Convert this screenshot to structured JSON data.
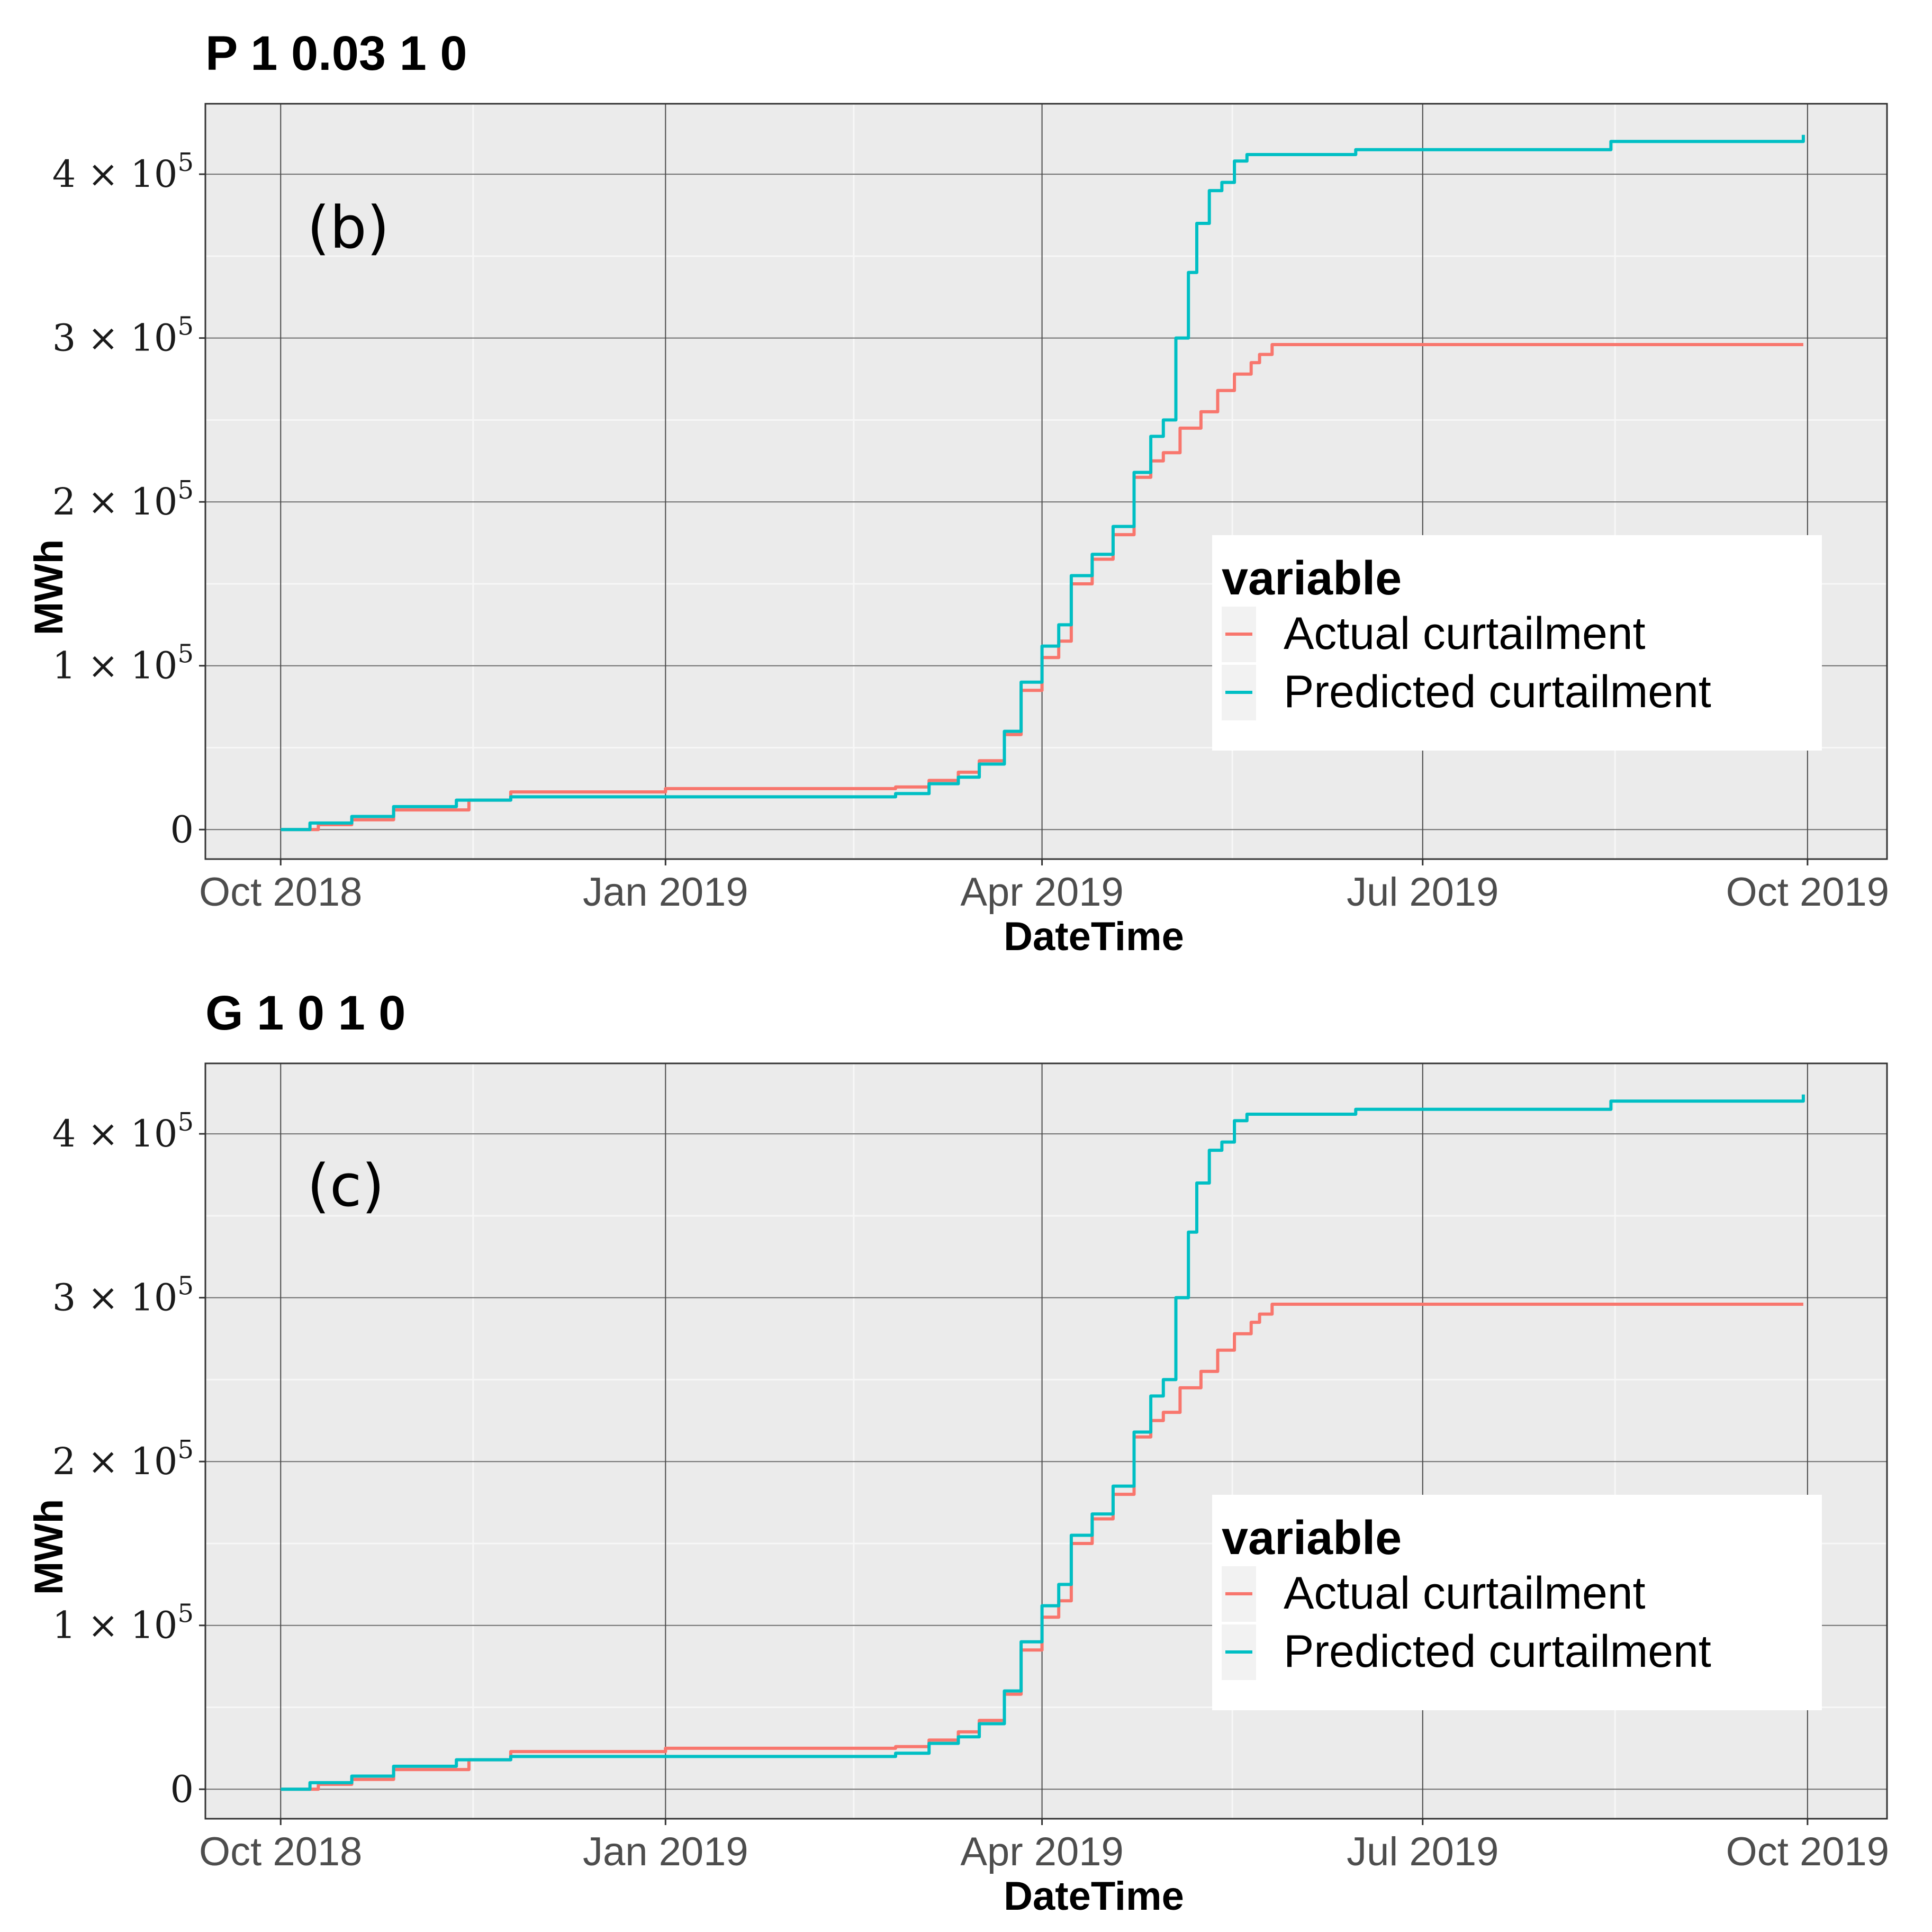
{
  "chart_data": [
    {
      "type": "line",
      "title": "P 1 0.03 1 0",
      "annotation": "(b)",
      "xlabel": "DateTime",
      "ylabel": "MWh",
      "x_ticks": [
        "Oct 2018",
        "Jan 2019",
        "Apr 2019",
        "Jul 2019",
        "Oct 2019"
      ],
      "x_tick_dates": [
        "2018-10-01",
        "2019-01-01",
        "2019-04-01",
        "2019-07-01",
        "2019-10-01"
      ],
      "xlim": [
        "2018-09-13",
        "2019-10-20"
      ],
      "y_ticks": [
        0,
        100000,
        200000,
        300000,
        400000
      ],
      "y_tick_labels": [
        {
          "mantissa": "0",
          "exp": ""
        },
        {
          "mantissa": "1 × 10",
          "exp": "5"
        },
        {
          "mantissa": "2 × 10",
          "exp": "5"
        },
        {
          "mantissa": "3 × 10",
          "exp": "5"
        },
        {
          "mantissa": "4 × 10",
          "exp": "5"
        }
      ],
      "ylim": [
        -18000,
        443000
      ],
      "grid": true,
      "legend": {
        "title": "variable",
        "position": "right"
      },
      "series": [
        {
          "name": "Actual curtailment",
          "color": "#F8766D",
          "x": [
            "2018-10-01",
            "2018-10-10",
            "2018-10-18",
            "2018-10-28",
            "2018-11-15",
            "2018-11-25",
            "2019-01-01",
            "2019-02-25",
            "2019-03-05",
            "2019-03-12",
            "2019-03-17",
            "2019-03-23",
            "2019-03-27",
            "2019-04-01",
            "2019-04-05",
            "2019-04-08",
            "2019-04-13",
            "2019-04-18",
            "2019-04-23",
            "2019-04-27",
            "2019-04-30",
            "2019-05-04",
            "2019-05-09",
            "2019-05-13",
            "2019-05-17",
            "2019-05-21",
            "2019-05-23",
            "2019-05-26",
            "2019-09-30"
          ],
          "values": [
            0,
            3000,
            6000,
            12000,
            18000,
            23000,
            25000,
            26000,
            30000,
            35000,
            42000,
            58000,
            85000,
            105000,
            115000,
            150000,
            165000,
            180000,
            215000,
            225000,
            230000,
            245000,
            255000,
            268000,
            278000,
            285000,
            290000,
            296000,
            296000
          ]
        },
        {
          "name": "Predicted curtailment",
          "color": "#00BFC4",
          "x": [
            "2018-10-01",
            "2018-10-08",
            "2018-10-18",
            "2018-10-28",
            "2018-11-12",
            "2018-11-25",
            "2019-01-01",
            "2019-02-25",
            "2019-03-05",
            "2019-03-12",
            "2019-03-17",
            "2019-03-23",
            "2019-03-27",
            "2019-04-01",
            "2019-04-05",
            "2019-04-08",
            "2019-04-13",
            "2019-04-18",
            "2019-04-23",
            "2019-04-27",
            "2019-04-30",
            "2019-05-03",
            "2019-05-06",
            "2019-05-08",
            "2019-05-11",
            "2019-05-14",
            "2019-05-17",
            "2019-05-20",
            "2019-06-15",
            "2019-08-15",
            "2019-09-30"
          ],
          "values": [
            0,
            4000,
            8000,
            14000,
            18000,
            20000,
            20000,
            22000,
            28000,
            32000,
            40000,
            60000,
            90000,
            112000,
            125000,
            155000,
            168000,
            185000,
            218000,
            240000,
            250000,
            300000,
            340000,
            370000,
            390000,
            395000,
            408000,
            412000,
            415000,
            420000,
            424000
          ]
        }
      ]
    },
    {
      "type": "line",
      "title": "G 1 0 1 0",
      "annotation": "(c)",
      "xlabel": "DateTime",
      "ylabel": "MWh",
      "x_ticks": [
        "Oct 2018",
        "Jan 2019",
        "Apr 2019",
        "Jul 2019",
        "Oct 2019"
      ],
      "x_tick_dates": [
        "2018-10-01",
        "2019-01-01",
        "2019-04-01",
        "2019-07-01",
        "2019-10-01"
      ],
      "xlim": [
        "2018-09-13",
        "2019-10-20"
      ],
      "y_ticks": [
        0,
        100000,
        200000,
        300000,
        400000
      ],
      "y_tick_labels": [
        {
          "mantissa": "0",
          "exp": ""
        },
        {
          "mantissa": "1 × 10",
          "exp": "5"
        },
        {
          "mantissa": "2 × 10",
          "exp": "5"
        },
        {
          "mantissa": "3 × 10",
          "exp": "5"
        },
        {
          "mantissa": "4 × 10",
          "exp": "5"
        }
      ],
      "ylim": [
        -18000,
        443000
      ],
      "grid": true,
      "legend": {
        "title": "variable",
        "position": "right"
      },
      "series": [
        {
          "name": "Actual curtailment",
          "color": "#F8766D",
          "x": [
            "2018-10-01",
            "2018-10-10",
            "2018-10-18",
            "2018-10-28",
            "2018-11-15",
            "2018-11-25",
            "2019-01-01",
            "2019-02-25",
            "2019-03-05",
            "2019-03-12",
            "2019-03-17",
            "2019-03-23",
            "2019-03-27",
            "2019-04-01",
            "2019-04-05",
            "2019-04-08",
            "2019-04-13",
            "2019-04-18",
            "2019-04-23",
            "2019-04-27",
            "2019-04-30",
            "2019-05-04",
            "2019-05-09",
            "2019-05-13",
            "2019-05-17",
            "2019-05-21",
            "2019-05-23",
            "2019-05-26",
            "2019-09-30"
          ],
          "values": [
            0,
            3000,
            6000,
            12000,
            18000,
            23000,
            25000,
            26000,
            30000,
            35000,
            42000,
            58000,
            85000,
            105000,
            115000,
            150000,
            165000,
            180000,
            215000,
            225000,
            230000,
            245000,
            255000,
            268000,
            278000,
            285000,
            290000,
            296000,
            296000
          ]
        },
        {
          "name": "Predicted curtailment",
          "color": "#00BFC4",
          "x": [
            "2018-10-01",
            "2018-10-08",
            "2018-10-18",
            "2018-10-28",
            "2018-11-12",
            "2018-11-25",
            "2019-01-01",
            "2019-02-25",
            "2019-03-05",
            "2019-03-12",
            "2019-03-17",
            "2019-03-23",
            "2019-03-27",
            "2019-04-01",
            "2019-04-05",
            "2019-04-08",
            "2019-04-13",
            "2019-04-18",
            "2019-04-23",
            "2019-04-27",
            "2019-04-30",
            "2019-05-03",
            "2019-05-06",
            "2019-05-08",
            "2019-05-11",
            "2019-05-14",
            "2019-05-17",
            "2019-05-20",
            "2019-06-15",
            "2019-08-15",
            "2019-09-30"
          ],
          "values": [
            0,
            4000,
            8000,
            14000,
            18000,
            20000,
            20000,
            22000,
            28000,
            32000,
            40000,
            60000,
            90000,
            112000,
            125000,
            155000,
            168000,
            185000,
            218000,
            240000,
            250000,
            300000,
            340000,
            370000,
            390000,
            395000,
            408000,
            412000,
            415000,
            420000,
            424000
          ]
        }
      ]
    }
  ]
}
